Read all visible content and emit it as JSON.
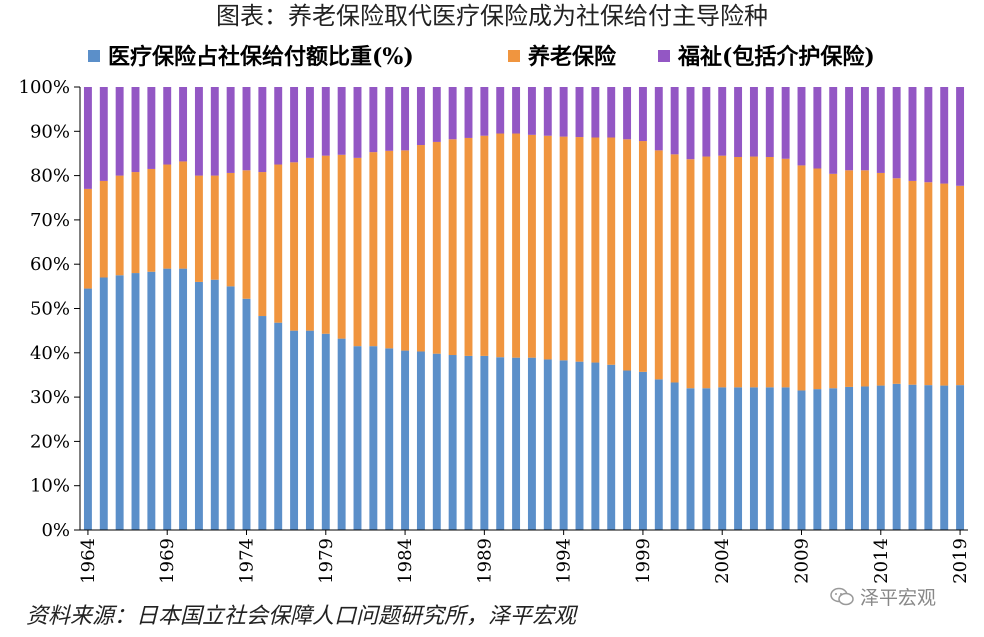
{
  "title": "图表：养老保险取代医疗保险成为社保给付主导险种",
  "source": "资料来源：日本国立社会保障人口问题研究所，泽平宏观",
  "watermark": "泽平宏观",
  "colors": {
    "medical": "#5b8fc9",
    "pension": "#f0953f",
    "welfare": "#9357c4",
    "axis": "#000000",
    "background": "#ffffff"
  },
  "chart_data": {
    "type": "bar",
    "stacked": true,
    "percent": true,
    "title": "图表：养老保险取代医疗保险成为社保给付主导险种",
    "xlabel": "",
    "ylabel": "",
    "ylim": [
      0,
      100
    ],
    "y_ticks": [
      "0%",
      "10%",
      "20%",
      "30%",
      "40%",
      "50%",
      "60%",
      "70%",
      "80%",
      "90%",
      "100%"
    ],
    "x_tick_labels": [
      "1964",
      "1969",
      "1974",
      "1979",
      "1984",
      "1989",
      "1994",
      "1999",
      "2004",
      "2009",
      "2014",
      "2019"
    ],
    "categories": [
      1964,
      1965,
      1966,
      1967,
      1968,
      1969,
      1970,
      1971,
      1972,
      1973,
      1974,
      1975,
      1976,
      1977,
      1978,
      1979,
      1980,
      1981,
      1982,
      1983,
      1984,
      1985,
      1986,
      1987,
      1988,
      1989,
      1990,
      1991,
      1992,
      1993,
      1994,
      1995,
      1996,
      1997,
      1998,
      1999,
      2000,
      2001,
      2002,
      2003,
      2004,
      2005,
      2006,
      2007,
      2008,
      2009,
      2010,
      2011,
      2012,
      2013,
      2014,
      2015,
      2016,
      2017,
      2018,
      2019
    ],
    "legend": [
      "医疗保险占社保给付额比重(%)",
      "养老保险",
      "福祉(包括介护保险)"
    ],
    "series": [
      {
        "name": "医疗保险占社保给付额比重(%)",
        "values": [
          54.5,
          57,
          57.5,
          58,
          58.3,
          59,
          59,
          56,
          56.5,
          55,
          52.2,
          48.3,
          46.8,
          45,
          45,
          44.3,
          43.2,
          41.5,
          41.5,
          41,
          40.5,
          40.3,
          39.8,
          39.5,
          39.3,
          39.3,
          39,
          38.9,
          38.9,
          38.5,
          38.3,
          38,
          37.8,
          37.3,
          36,
          35.7,
          34,
          33.3,
          32,
          32,
          32.2,
          32.2,
          32.2,
          32.2,
          32.2,
          31.5,
          31.8,
          32,
          32.3,
          32.4,
          32.6,
          33,
          32.8,
          32.7,
          32.6,
          32.7
        ]
      },
      {
        "name": "养老保险",
        "values": [
          22.5,
          21.8,
          22.5,
          22.8,
          23.2,
          23.5,
          24.2,
          24,
          23.5,
          25.6,
          29,
          32.5,
          35.7,
          38,
          39,
          40.2,
          41.5,
          42.5,
          43.8,
          44.6,
          45.2,
          46.6,
          47.8,
          48.7,
          49.2,
          49.7,
          50.5,
          50.6,
          50.3,
          50.5,
          50.5,
          50.7,
          50.8,
          51.3,
          52.2,
          52.1,
          51.7,
          51.5,
          51.7,
          52.3,
          52.3,
          52,
          52.1,
          52,
          51.6,
          50.8,
          49.8,
          48.4,
          48.9,
          48.8,
          48,
          46.4,
          46,
          45.8,
          45.6,
          45
        ]
      },
      {
        "name": "福祉(包括介护保险)",
        "values": [
          23,
          21.2,
          20,
          19.2,
          18.5,
          17.5,
          16.8,
          20,
          20,
          19.4,
          18.8,
          19.2,
          17.5,
          17,
          16,
          15.5,
          15.3,
          16,
          14.7,
          14.4,
          14.3,
          13.1,
          12.4,
          11.8,
          11.5,
          11,
          10.5,
          10.5,
          10.8,
          11,
          11.2,
          11.3,
          11.4,
          11.4,
          11.8,
          12.2,
          14.3,
          15.2,
          16.3,
          15.7,
          15.5,
          15.8,
          15.7,
          15.8,
          16.2,
          17.7,
          18.4,
          19.6,
          18.8,
          18.8,
          19.4,
          20.6,
          21.2,
          21.5,
          21.8,
          22.3
        ]
      }
    ]
  }
}
